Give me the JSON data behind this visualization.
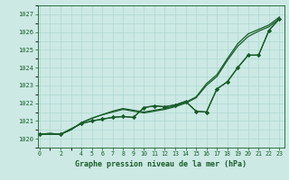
{
  "title": "Graphe pression niveau de la mer (hPa)",
  "bg_color": "#cce9e4",
  "grid_color": "#b0d8d2",
  "line_color": "#1a5c2a",
  "x_ticks": [
    0,
    2,
    4,
    5,
    6,
    7,
    8,
    9,
    10,
    11,
    12,
    13,
    14,
    15,
    16,
    17,
    18,
    19,
    20,
    21,
    22,
    23
  ],
  "ylim": [
    1019.6,
    1027.4
  ],
  "xlim": [
    -0.2,
    23.5
  ],
  "yticks": [
    1020,
    1021,
    1022,
    1023,
    1024,
    1025,
    1026,
    1027
  ],
  "series1_x": [
    0,
    1,
    2,
    3,
    4,
    5,
    6,
    7,
    8,
    9,
    10,
    11,
    12,
    13,
    14,
    15,
    16,
    17,
    18,
    19,
    20,
    21,
    22,
    23
  ],
  "series1_y": [
    1020.25,
    1020.3,
    1020.25,
    1020.5,
    1020.9,
    1021.15,
    1021.35,
    1021.55,
    1021.7,
    1021.6,
    1021.5,
    1021.6,
    1021.7,
    1021.85,
    1022.05,
    1022.35,
    1023.1,
    1023.6,
    1024.5,
    1025.35,
    1025.9,
    1026.15,
    1026.4,
    1026.85
  ],
  "series2_x": [
    0,
    1,
    2,
    3,
    4,
    5,
    6,
    7,
    8,
    9,
    10,
    11,
    12,
    13,
    14,
    15,
    16,
    17,
    18,
    19,
    20,
    21,
    22,
    23
  ],
  "series2_y": [
    1020.25,
    1020.3,
    1020.25,
    1020.5,
    1020.9,
    1021.15,
    1021.35,
    1021.5,
    1021.65,
    1021.55,
    1021.45,
    1021.55,
    1021.65,
    1021.8,
    1022.0,
    1022.3,
    1023.0,
    1023.5,
    1024.4,
    1025.2,
    1025.75,
    1026.05,
    1026.3,
    1026.75
  ],
  "series3_x": [
    0,
    2,
    4,
    5,
    6,
    7,
    8,
    9,
    10,
    11,
    12,
    13,
    14,
    15,
    16,
    17,
    18,
    19,
    20,
    21,
    22,
    23
  ],
  "series3_y": [
    1020.25,
    1020.25,
    1020.85,
    1021.0,
    1021.1,
    1021.2,
    1021.25,
    1021.2,
    1021.75,
    1021.85,
    1021.8,
    1021.9,
    1022.1,
    1021.55,
    1021.5,
    1022.8,
    1023.2,
    1024.0,
    1024.7,
    1024.7,
    1026.1,
    1026.75
  ],
  "series4_x": [
    0,
    2,
    4,
    5,
    6,
    7,
    8,
    9,
    10,
    11,
    12,
    13,
    14,
    15,
    16,
    17,
    18,
    19,
    20,
    21,
    22,
    23
  ],
  "series4_y": [
    1020.25,
    1020.25,
    1020.85,
    1021.0,
    1021.1,
    1021.2,
    1021.25,
    1021.2,
    1021.75,
    1021.85,
    1021.8,
    1021.9,
    1022.1,
    1021.55,
    1021.5,
    1022.8,
    1023.2,
    1024.0,
    1024.7,
    1024.7,
    1026.1,
    1026.75
  ]
}
